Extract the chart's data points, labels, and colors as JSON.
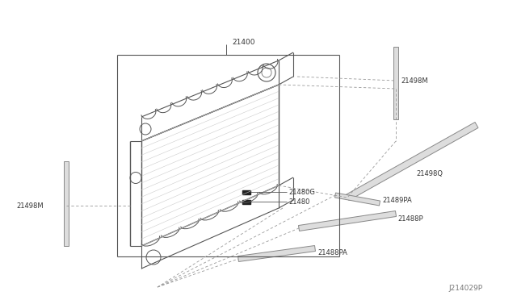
{
  "bg_color": "#ffffff",
  "line_color": "#555555",
  "part_color": "#888888",
  "dashed_color": "#999999",
  "text_color": "#333333",
  "watermark": "J214029P",
  "label_21400": "21400",
  "label_21498M_r": "21498M",
  "label_21498Q": "21498Q",
  "label_21498M_l": "21498M",
  "label_21480G": "21480G",
  "label_21480": "21480",
  "label_21489PA": "21489PA",
  "label_21488P": "21488P",
  "label_21488PA": "21488PA"
}
